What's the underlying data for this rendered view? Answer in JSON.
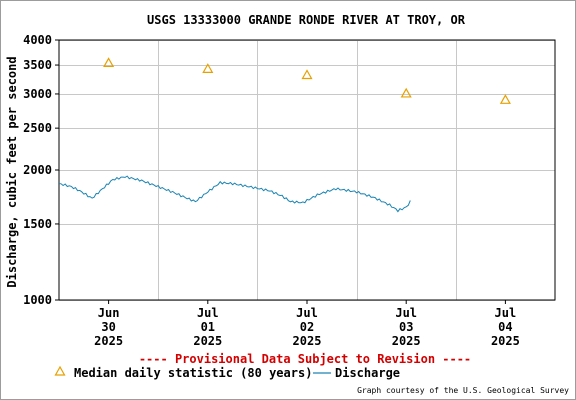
{
  "chart_data": {
    "type": "line",
    "title": "USGS 13333000 GRANDE RONDE RIVER AT TROY, OR",
    "xlabel": "",
    "ylabel": "Discharge, cubic feet per second",
    "y_scale": "log",
    "ylim": [
      1000,
      4000
    ],
    "y_ticks": [
      1000,
      1500,
      2000,
      2500,
      3000,
      3500,
      4000
    ],
    "grid": true,
    "x_range": [
      "2025-06-30T00:00",
      "2025-07-05T00:00"
    ],
    "x_ticks": [
      {
        "at": "2025-06-30T12:00",
        "lines": [
          "Jun",
          "30",
          "2025"
        ]
      },
      {
        "at": "2025-07-01T12:00",
        "lines": [
          "Jul",
          "01",
          "2025"
        ]
      },
      {
        "at": "2025-07-02T12:00",
        "lines": [
          "Jul",
          "02",
          "2025"
        ]
      },
      {
        "at": "2025-07-03T12:00",
        "lines": [
          "Jul",
          "03",
          "2025"
        ]
      },
      {
        "at": "2025-07-04T12:00",
        "lines": [
          "Jul",
          "04",
          "2025"
        ]
      }
    ],
    "series": [
      {
        "name": "Median daily statistic (80 years)",
        "kind": "marker",
        "color": "#e8a000",
        "points": [
          {
            "x": "2025-06-30T12:00",
            "y": 3530
          },
          {
            "x": "2025-07-01T12:00",
            "y": 3420
          },
          {
            "x": "2025-07-02T12:00",
            "y": 3310
          },
          {
            "x": "2025-07-03T12:00",
            "y": 3000
          },
          {
            "x": "2025-07-04T12:00",
            "y": 2900
          }
        ]
      },
      {
        "name": "Discharge",
        "kind": "line",
        "color": "#1a84b3",
        "points": [
          {
            "x": "2025-06-30T00:00",
            "y": 1860
          },
          {
            "x": "2025-06-30T03:00",
            "y": 1830
          },
          {
            "x": "2025-06-30T05:00",
            "y": 1790
          },
          {
            "x": "2025-06-30T08:00",
            "y": 1720
          },
          {
            "x": "2025-06-30T10:00",
            "y": 1790
          },
          {
            "x": "2025-06-30T13:00",
            "y": 1900
          },
          {
            "x": "2025-06-30T16:00",
            "y": 1930
          },
          {
            "x": "2025-06-30T20:00",
            "y": 1890
          },
          {
            "x": "2025-07-01T00:00",
            "y": 1830
          },
          {
            "x": "2025-07-01T04:00",
            "y": 1770
          },
          {
            "x": "2025-07-01T07:00",
            "y": 1720
          },
          {
            "x": "2025-07-01T09:00",
            "y": 1690
          },
          {
            "x": "2025-07-01T12:00",
            "y": 1780
          },
          {
            "x": "2025-07-01T15:00",
            "y": 1870
          },
          {
            "x": "2025-07-01T18:00",
            "y": 1860
          },
          {
            "x": "2025-07-01T22:00",
            "y": 1830
          },
          {
            "x": "2025-07-02T03:00",
            "y": 1790
          },
          {
            "x": "2025-07-02T06:00",
            "y": 1740
          },
          {
            "x": "2025-07-02T08:00",
            "y": 1690
          },
          {
            "x": "2025-07-02T11:00",
            "y": 1680
          },
          {
            "x": "2025-07-02T15:00",
            "y": 1760
          },
          {
            "x": "2025-07-02T19:00",
            "y": 1810
          },
          {
            "x": "2025-07-03T00:00",
            "y": 1780
          },
          {
            "x": "2025-07-03T04:00",
            "y": 1730
          },
          {
            "x": "2025-07-03T08:00",
            "y": 1660
          },
          {
            "x": "2025-07-03T10:00",
            "y": 1610
          },
          {
            "x": "2025-07-03T12:00",
            "y": 1640
          },
          {
            "x": "2025-07-03T13:00",
            "y": 1690
          }
        ]
      }
    ],
    "annotations": [
      "---- Provisional Data Subject to Revision ----"
    ],
    "credit": "Graph courtesy of the U.S. Geological Survey",
    "colors": {
      "grid": "#c8c8c8",
      "axis": "#000000",
      "warning": "#d40000"
    }
  }
}
